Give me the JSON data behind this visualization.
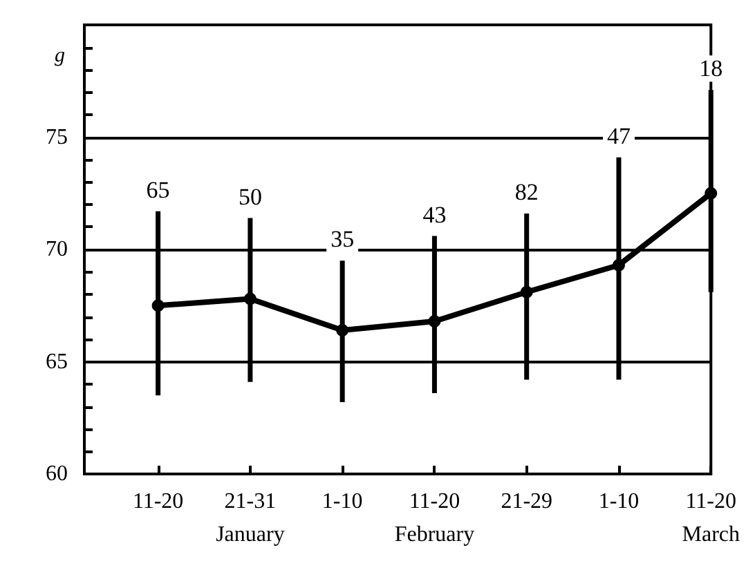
{
  "chart_data": {
    "type": "line",
    "ylabel": "g",
    "categories": [
      "11-20",
      "21-31\nJanuary",
      "1-10",
      "11-20\nFebruary",
      "21-29",
      "1-10",
      "11-20\nMarch"
    ],
    "values": [
      67.5,
      67.8,
      66.4,
      66.8,
      68.1,
      69.3,
      72.5
    ],
    "errors": [
      [
        63.5,
        71.7
      ],
      [
        64.1,
        71.4
      ],
      [
        63.2,
        69.5
      ],
      [
        63.6,
        70.6
      ],
      [
        64.2,
        71.6
      ],
      [
        64.2,
        74.1
      ],
      [
        68.1,
        77.1
      ]
    ],
    "annotations": [
      {
        "text": "65",
        "x": "11-20",
        "y": 71.7
      },
      {
        "text": "50",
        "x": "21-31\nJanuary",
        "y": 71.4
      },
      {
        "text": "35",
        "x": "1-10",
        "y": 69.5
      },
      {
        "text": "43",
        "x": "11-20\nFebruary",
        "y": 70.6
      },
      {
        "text": "82",
        "x": "21-29",
        "y": 71.6
      },
      "47",
      {
        "text": "18",
        "x": "11-20\nMarch",
        "y": 77.1
      }
    ],
    "color": "#000000",
    "marker": "circle",
    "line_style": "solid",
    "ylim": [
      60,
      80
    ],
    "yticks": [
      60,
      {
        "value": 61,
        "label": null
      },
      {
        "value": 62,
        "label": null
      },
      {
        "value": 63,
        "label": null
      },
      {
        "value": 64,
        "label": null
      },
      65,
      {
        "value": 66,
        "label": null
      },
      {
        "value": 67,
        "label": null
      },
      {
        "value": 68,
        "label": null
      },
      {
        "value": 69,
        "label": null
      },
      70,
      {
        "value": 71,
        "label": null
      },
      {
        "value": 72,
        "label": null
      },
      {
        "value": 73,
        "label": null
      },
      {
        "value": 74,
        "label": null
      },
      75,
      {
        "value": 76,
        "label": null
      },
      {
        "value": 77,
        "label": null
      },
      {
        "value": 78,
        "label": null
      },
      {
        "value": 79,
        "label": null
      }
    ],
    "grid": "y"
  }
}
